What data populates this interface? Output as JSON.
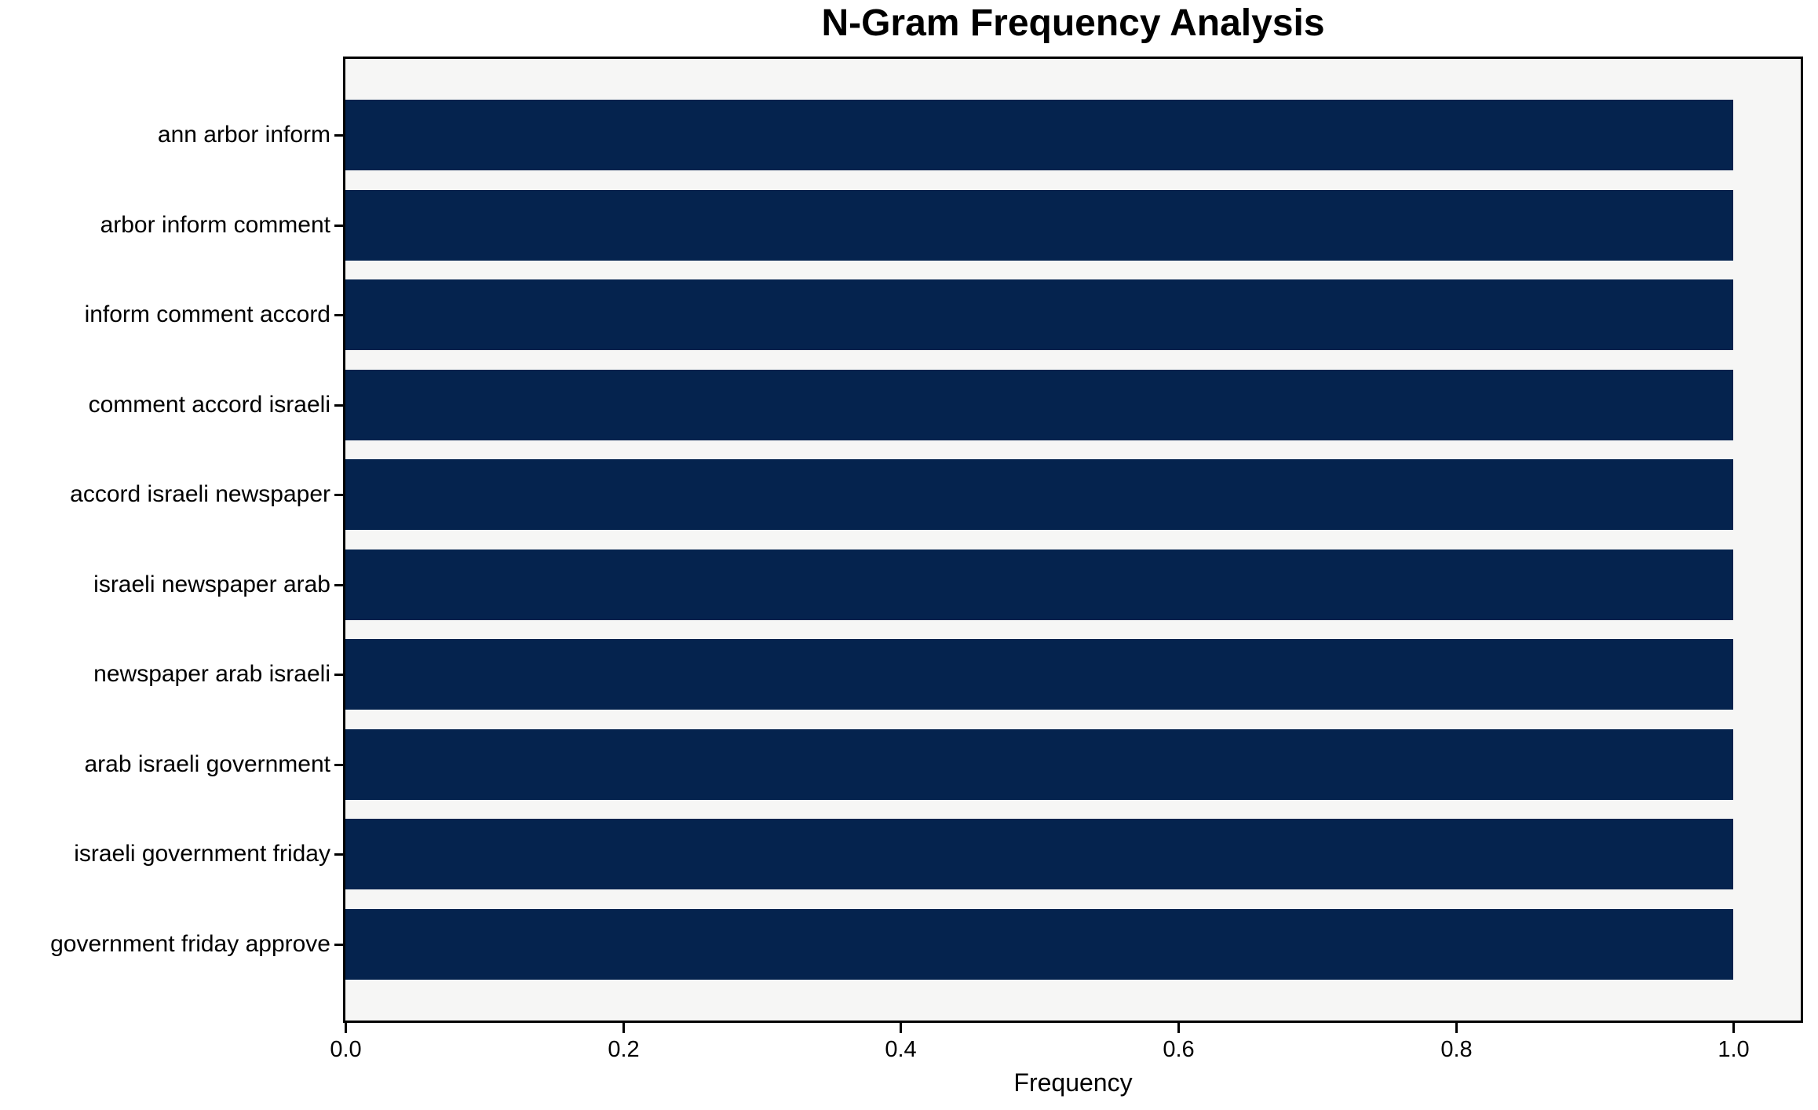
{
  "figure": {
    "background_color": "#ffffff"
  },
  "chart_data": {
    "type": "bar",
    "orientation": "horizontal",
    "title": "N-Gram Frequency Analysis",
    "xlabel": "Frequency",
    "ylabel": "",
    "categories": [
      "ann arbor inform",
      "arbor inform comment",
      "inform comment accord",
      "comment accord israeli",
      "accord israeli newspaper",
      "israeli newspaper arab",
      "newspaper arab israeli",
      "arab israeli government",
      "israeli government friday",
      "government friday approve"
    ],
    "values": [
      1.0,
      1.0,
      1.0,
      1.0,
      1.0,
      1.0,
      1.0,
      1.0,
      1.0,
      1.0
    ],
    "xticks": [
      0.0,
      0.2,
      0.4,
      0.6,
      0.8,
      1.0
    ],
    "xtick_labels": [
      "0.0",
      "0.2",
      "0.4",
      "0.6",
      "0.8",
      "1.0"
    ],
    "xlim": [
      0,
      1.0485
    ],
    "grid": false,
    "legend": null,
    "bar_color": "#05234e",
    "plot_background": "#f6f6f5",
    "spine_color": "#000000"
  }
}
